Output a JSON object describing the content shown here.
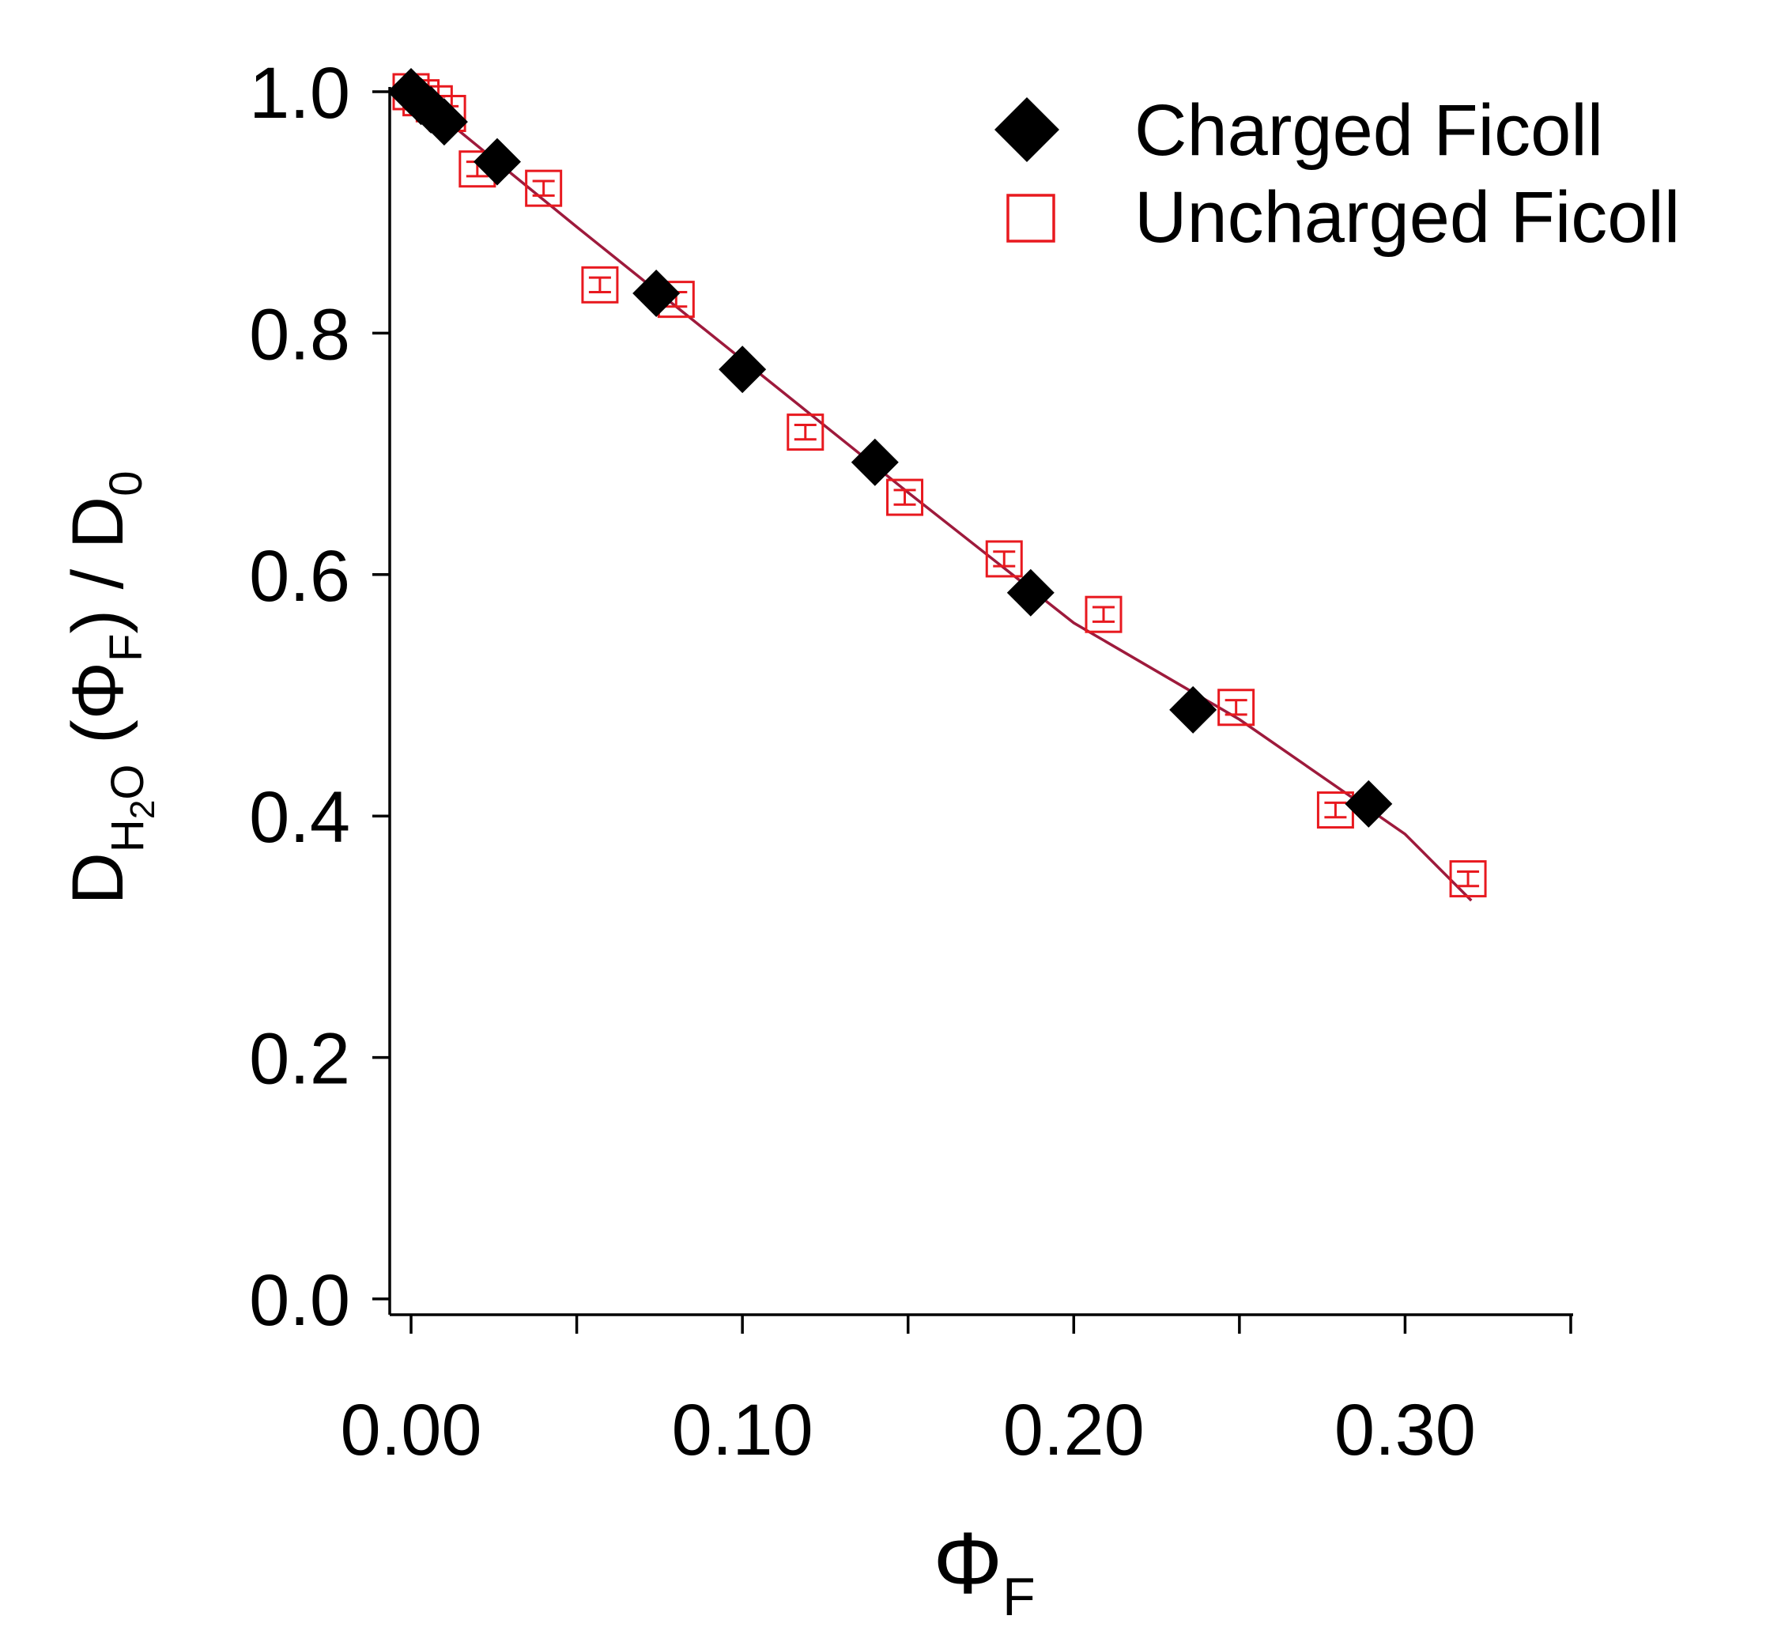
{
  "colors": {
    "axis": "#000000",
    "charged": "#000000",
    "uncharged": "#e8191f",
    "fit_line": "#9e1a3c",
    "background": "#ffffff"
  },
  "chart_data": {
    "type": "scatter",
    "title": "",
    "xlabel": {
      "symbol": "Φ",
      "subscript": "F"
    },
    "ylabel": {
      "d": "D",
      "h": "H",
      "two": "2",
      "o": "O",
      "open": " (",
      "phi": "Φ",
      "f": "F",
      "close": ") / D",
      "zero": "0"
    },
    "xlim": [
      -0.006,
      0.35
    ],
    "ylim": [
      -0.02,
      1.02
    ],
    "x_major_ticks": [
      0.0,
      0.1,
      0.2,
      0.3
    ],
    "x_minor_ticks": [
      0.05,
      0.15,
      0.25,
      0.35
    ],
    "x_tick_labels": [
      "0.00",
      "0.10",
      "0.20",
      "0.30"
    ],
    "y_ticks": [
      0.0,
      0.2,
      0.4,
      0.6,
      0.8,
      1.0
    ],
    "y_tick_labels": [
      "0.0",
      "0.2",
      "0.4",
      "0.6",
      "0.8",
      "1.0"
    ],
    "grid": false,
    "legend_position": "top-right",
    "series": [
      {
        "name": "Charged Ficoll",
        "marker": "filled-diamond",
        "color": "#000000",
        "points": [
          {
            "x": 0.0,
            "y": 1.0
          },
          {
            "x": 0.003,
            "y": 0.992
          },
          {
            "x": 0.006,
            "y": 0.985
          },
          {
            "x": 0.01,
            "y": 0.975
          },
          {
            "x": 0.026,
            "y": 0.942
          },
          {
            "x": 0.074,
            "y": 0.833
          },
          {
            "x": 0.1,
            "y": 0.77
          },
          {
            "x": 0.14,
            "y": 0.693
          },
          {
            "x": 0.187,
            "y": 0.585
          },
          {
            "x": 0.236,
            "y": 0.488
          },
          {
            "x": 0.289,
            "y": 0.41
          }
        ]
      },
      {
        "name": "Uncharged Ficoll",
        "marker": "open-square-with-error-bars",
        "color": "#e8191f",
        "points": [
          {
            "x": 0.0,
            "y": 1.0,
            "err": 0.006
          },
          {
            "x": 0.003,
            "y": 0.995,
            "err": 0.006
          },
          {
            "x": 0.007,
            "y": 0.99,
            "err": 0.006
          },
          {
            "x": 0.011,
            "y": 0.982,
            "err": 0.006
          },
          {
            "x": 0.02,
            "y": 0.936,
            "err": 0.006
          },
          {
            "x": 0.04,
            "y": 0.92,
            "err": 0.006
          },
          {
            "x": 0.057,
            "y": 0.84,
            "err": 0.006
          },
          {
            "x": 0.08,
            "y": 0.828,
            "err": 0.006
          },
          {
            "x": 0.119,
            "y": 0.718,
            "err": 0.006
          },
          {
            "x": 0.149,
            "y": 0.664,
            "err": 0.006
          },
          {
            "x": 0.179,
            "y": 0.613,
            "err": 0.006
          },
          {
            "x": 0.209,
            "y": 0.567,
            "err": 0.006
          },
          {
            "x": 0.249,
            "y": 0.49,
            "err": 0.006
          },
          {
            "x": 0.279,
            "y": 0.405,
            "err": 0.006
          },
          {
            "x": 0.319,
            "y": 0.348,
            "err": 0.006
          }
        ]
      },
      {
        "marker": "line",
        "color": "#9e1a3c",
        "points": [
          {
            "x": 0.0,
            "y": 1.0
          },
          {
            "x": 0.05,
            "y": 0.888
          },
          {
            "x": 0.1,
            "y": 0.778
          },
          {
            "x": 0.15,
            "y": 0.668
          },
          {
            "x": 0.2,
            "y": 0.56
          },
          {
            "x": 0.25,
            "y": 0.48
          },
          {
            "x": 0.3,
            "y": 0.385
          },
          {
            "x": 0.32,
            "y": 0.33
          }
        ]
      }
    ]
  }
}
